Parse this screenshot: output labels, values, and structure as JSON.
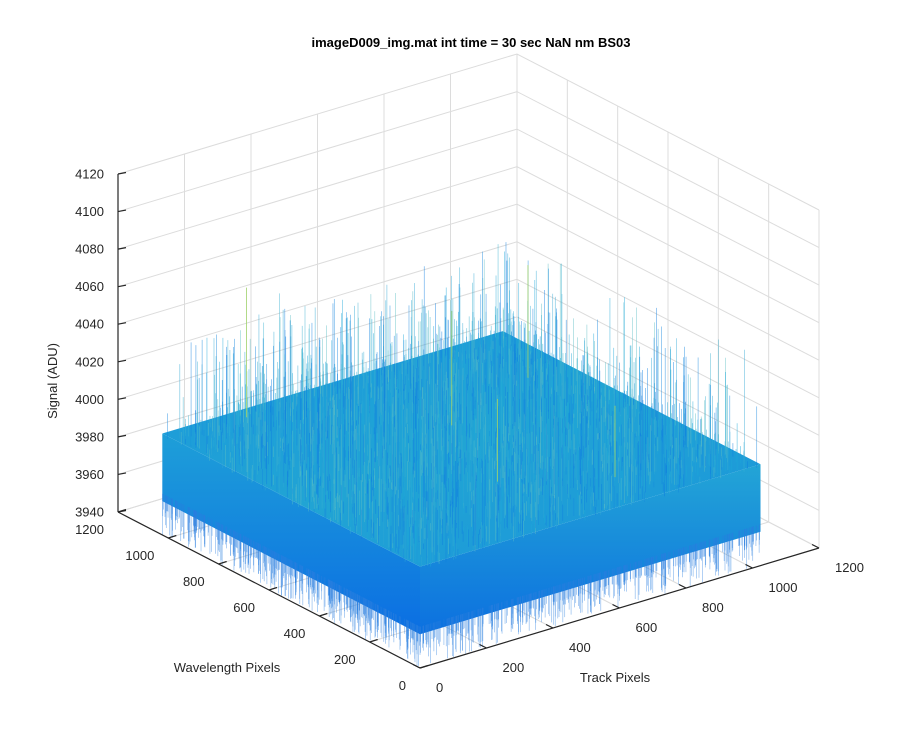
{
  "chart_data": {
    "type": "surface",
    "title": "imageD009_img.mat int time = 30 sec  NaN nm BS03",
    "zlabel": "Signal (ADU)",
    "xlabel": "Track Pixels",
    "ylabel": "Wavelength Pixels",
    "xlim": [
      0,
      1200
    ],
    "ylim": [
      0,
      1200
    ],
    "zlim": [
      3940,
      4120
    ],
    "x_ticks": [
      0,
      200,
      400,
      600,
      800,
      1000,
      1200
    ],
    "y_ticks": [
      0,
      200,
      400,
      600,
      800,
      1000,
      1200
    ],
    "z_ticks": [
      3940,
      3960,
      3980,
      4000,
      4020,
      4040,
      4060,
      4080,
      4100,
      4120
    ],
    "surface_extent": {
      "x": [
        0,
        1024
      ],
      "y": [
        0,
        1024
      ]
    },
    "signal_mean": 3982,
    "signal_noise_band": [
      3955,
      4050
    ],
    "grid": true,
    "colormap": "parula",
    "colors": {
      "low": "#0d6be0",
      "mid": "#1aa3d6",
      "high": "#9fd26a"
    }
  }
}
